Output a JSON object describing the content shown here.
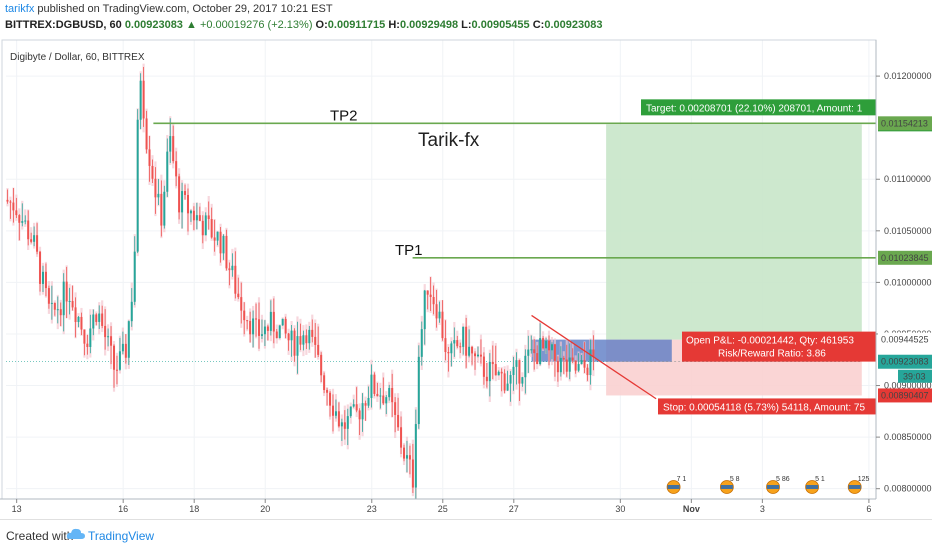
{
  "header": {
    "user": "tarikfx",
    "published": "published on TradingView.com, October 29, 2017 10:21 EST",
    "symbol": "BITTREX:DGBUSD, 60",
    "last": "0.00923083",
    "change": "▲ +0.00019276 (+2.13%)",
    "o_label": "O:",
    "o": "0.00911715",
    "h_label": "H:",
    "h": "0.00929498",
    "l_label": "L:",
    "l": "0.00905455",
    "c_label": "C:",
    "c": "0.00923083"
  },
  "footer": {
    "created": "Created with",
    "brand": "TradingView"
  },
  "chart_data": {
    "type": "candlestick",
    "title": "Digibyte / Dollar, 60, BITTREX",
    "watermark": "Tarik-fx",
    "ylim": [
      0.0079,
      0.01235
    ],
    "y_ticks": [
      "0.01200000",
      "0.01100000",
      "0.01050000",
      "0.01000000",
      "0.00950000",
      "0.00900000",
      "0.00850000",
      "0.00800000"
    ],
    "y_tick_values": [
      0.012,
      0.011,
      0.0105,
      0.01,
      0.0095,
      0.009,
      0.0085,
      0.008
    ],
    "x_ticks": [
      "13",
      "16",
      "18",
      "20",
      "23",
      "25",
      "27",
      "30",
      "Nov",
      "3",
      "6"
    ],
    "x_tick_days": [
      13,
      16,
      18,
      20,
      23,
      25,
      27,
      30,
      32,
      34,
      37
    ],
    "xlim": [
      12.7,
      37.2
    ],
    "candles_end_day": 29.2,
    "price_path": [
      [
        12.7,
        0.0108
      ],
      [
        13.0,
        0.01075
      ],
      [
        13.5,
        0.0104
      ],
      [
        14.0,
        0.00965
      ],
      [
        14.5,
        0.00995
      ],
      [
        15.0,
        0.00945
      ],
      [
        15.3,
        0.00975
      ],
      [
        15.8,
        0.00915
      ],
      [
        16.1,
        0.0093
      ],
      [
        16.35,
        0.0101
      ],
      [
        16.5,
        0.01215
      ],
      [
        16.7,
        0.0114
      ],
      [
        17.1,
        0.0106
      ],
      [
        17.35,
        0.0114
      ],
      [
        17.6,
        0.0108
      ],
      [
        18.2,
        0.0106
      ],
      [
        18.8,
        0.0104
      ],
      [
        19.3,
        0.00985
      ],
      [
        19.8,
        0.0095
      ],
      [
        20.3,
        0.0096
      ],
      [
        20.8,
        0.0094
      ],
      [
        21.2,
        0.00955
      ],
      [
        21.7,
        0.00905
      ],
      [
        22.2,
        0.0086
      ],
      [
        22.6,
        0.0087
      ],
      [
        23.0,
        0.009
      ],
      [
        23.5,
        0.0089
      ],
      [
        23.9,
        0.0084
      ],
      [
        24.2,
        0.0081
      ],
      [
        24.35,
        0.00925
      ],
      [
        24.6,
        0.01
      ],
      [
        24.9,
        0.00975
      ],
      [
        25.2,
        0.00925
      ],
      [
        25.6,
        0.00945
      ],
      [
        26.0,
        0.0092
      ],
      [
        26.5,
        0.0091
      ],
      [
        27.0,
        0.00905
      ],
      [
        27.4,
        0.00925
      ],
      [
        27.8,
        0.00935
      ],
      [
        28.2,
        0.00925
      ],
      [
        28.6,
        0.00915
      ],
      [
        29.0,
        0.00915
      ],
      [
        29.2,
        0.00925
      ]
    ],
    "horizontal_levels": [
      {
        "name": "TP2",
        "value": 0.01154213,
        "label": "0.01154213",
        "from_day": 16.85
      },
      {
        "name": "TP1",
        "value": 0.01023845,
        "label": "0.01023845",
        "from_day": 24.15
      }
    ],
    "trend_line": {
      "from": [
        27.5,
        0.00968
      ],
      "to": [
        29.6,
        0.00893
      ]
    },
    "long_position": {
      "from_day": 29.6,
      "to_day": 36.8,
      "entry": 0.00944525,
      "target": 0.01153226,
      "stop": 0.00890407,
      "current_from_day": 27.5,
      "current_to_day": 29.2,
      "current_price": 0.00923083,
      "target_text": "Target: 0.00208701 (22.10%) 208701, Amount: 1",
      "pnl_text": "Open P&L: -0.00021442, Qty: 461953",
      "rr_text": "Risk/Reward Ratio: 3.86",
      "stop_text": "Stop: 0.00054118 (5.73%) 54118, Amount: 75",
      "entry_label": "0.00944525",
      "target_label": "0.01153226",
      "stop_label": "0.00890407",
      "current_label": "0.00923083",
      "countdown": "39:03"
    },
    "events": [
      {
        "day": 31.5,
        "count": "7 1"
      },
      {
        "day": 33.0,
        "count": "5 8"
      },
      {
        "day": 34.3,
        "count": "5 86"
      },
      {
        "day": 35.4,
        "count": "5 1"
      },
      {
        "day": 36.6,
        "count": "125"
      }
    ],
    "colors": {
      "up": "#26a69a",
      "down": "#ef5350",
      "level": "#6aa84f",
      "target_zone": "#c8e6c9",
      "stop_zone": "#f9d0d0",
      "entry_zone": "#5c7cc4"
    }
  }
}
